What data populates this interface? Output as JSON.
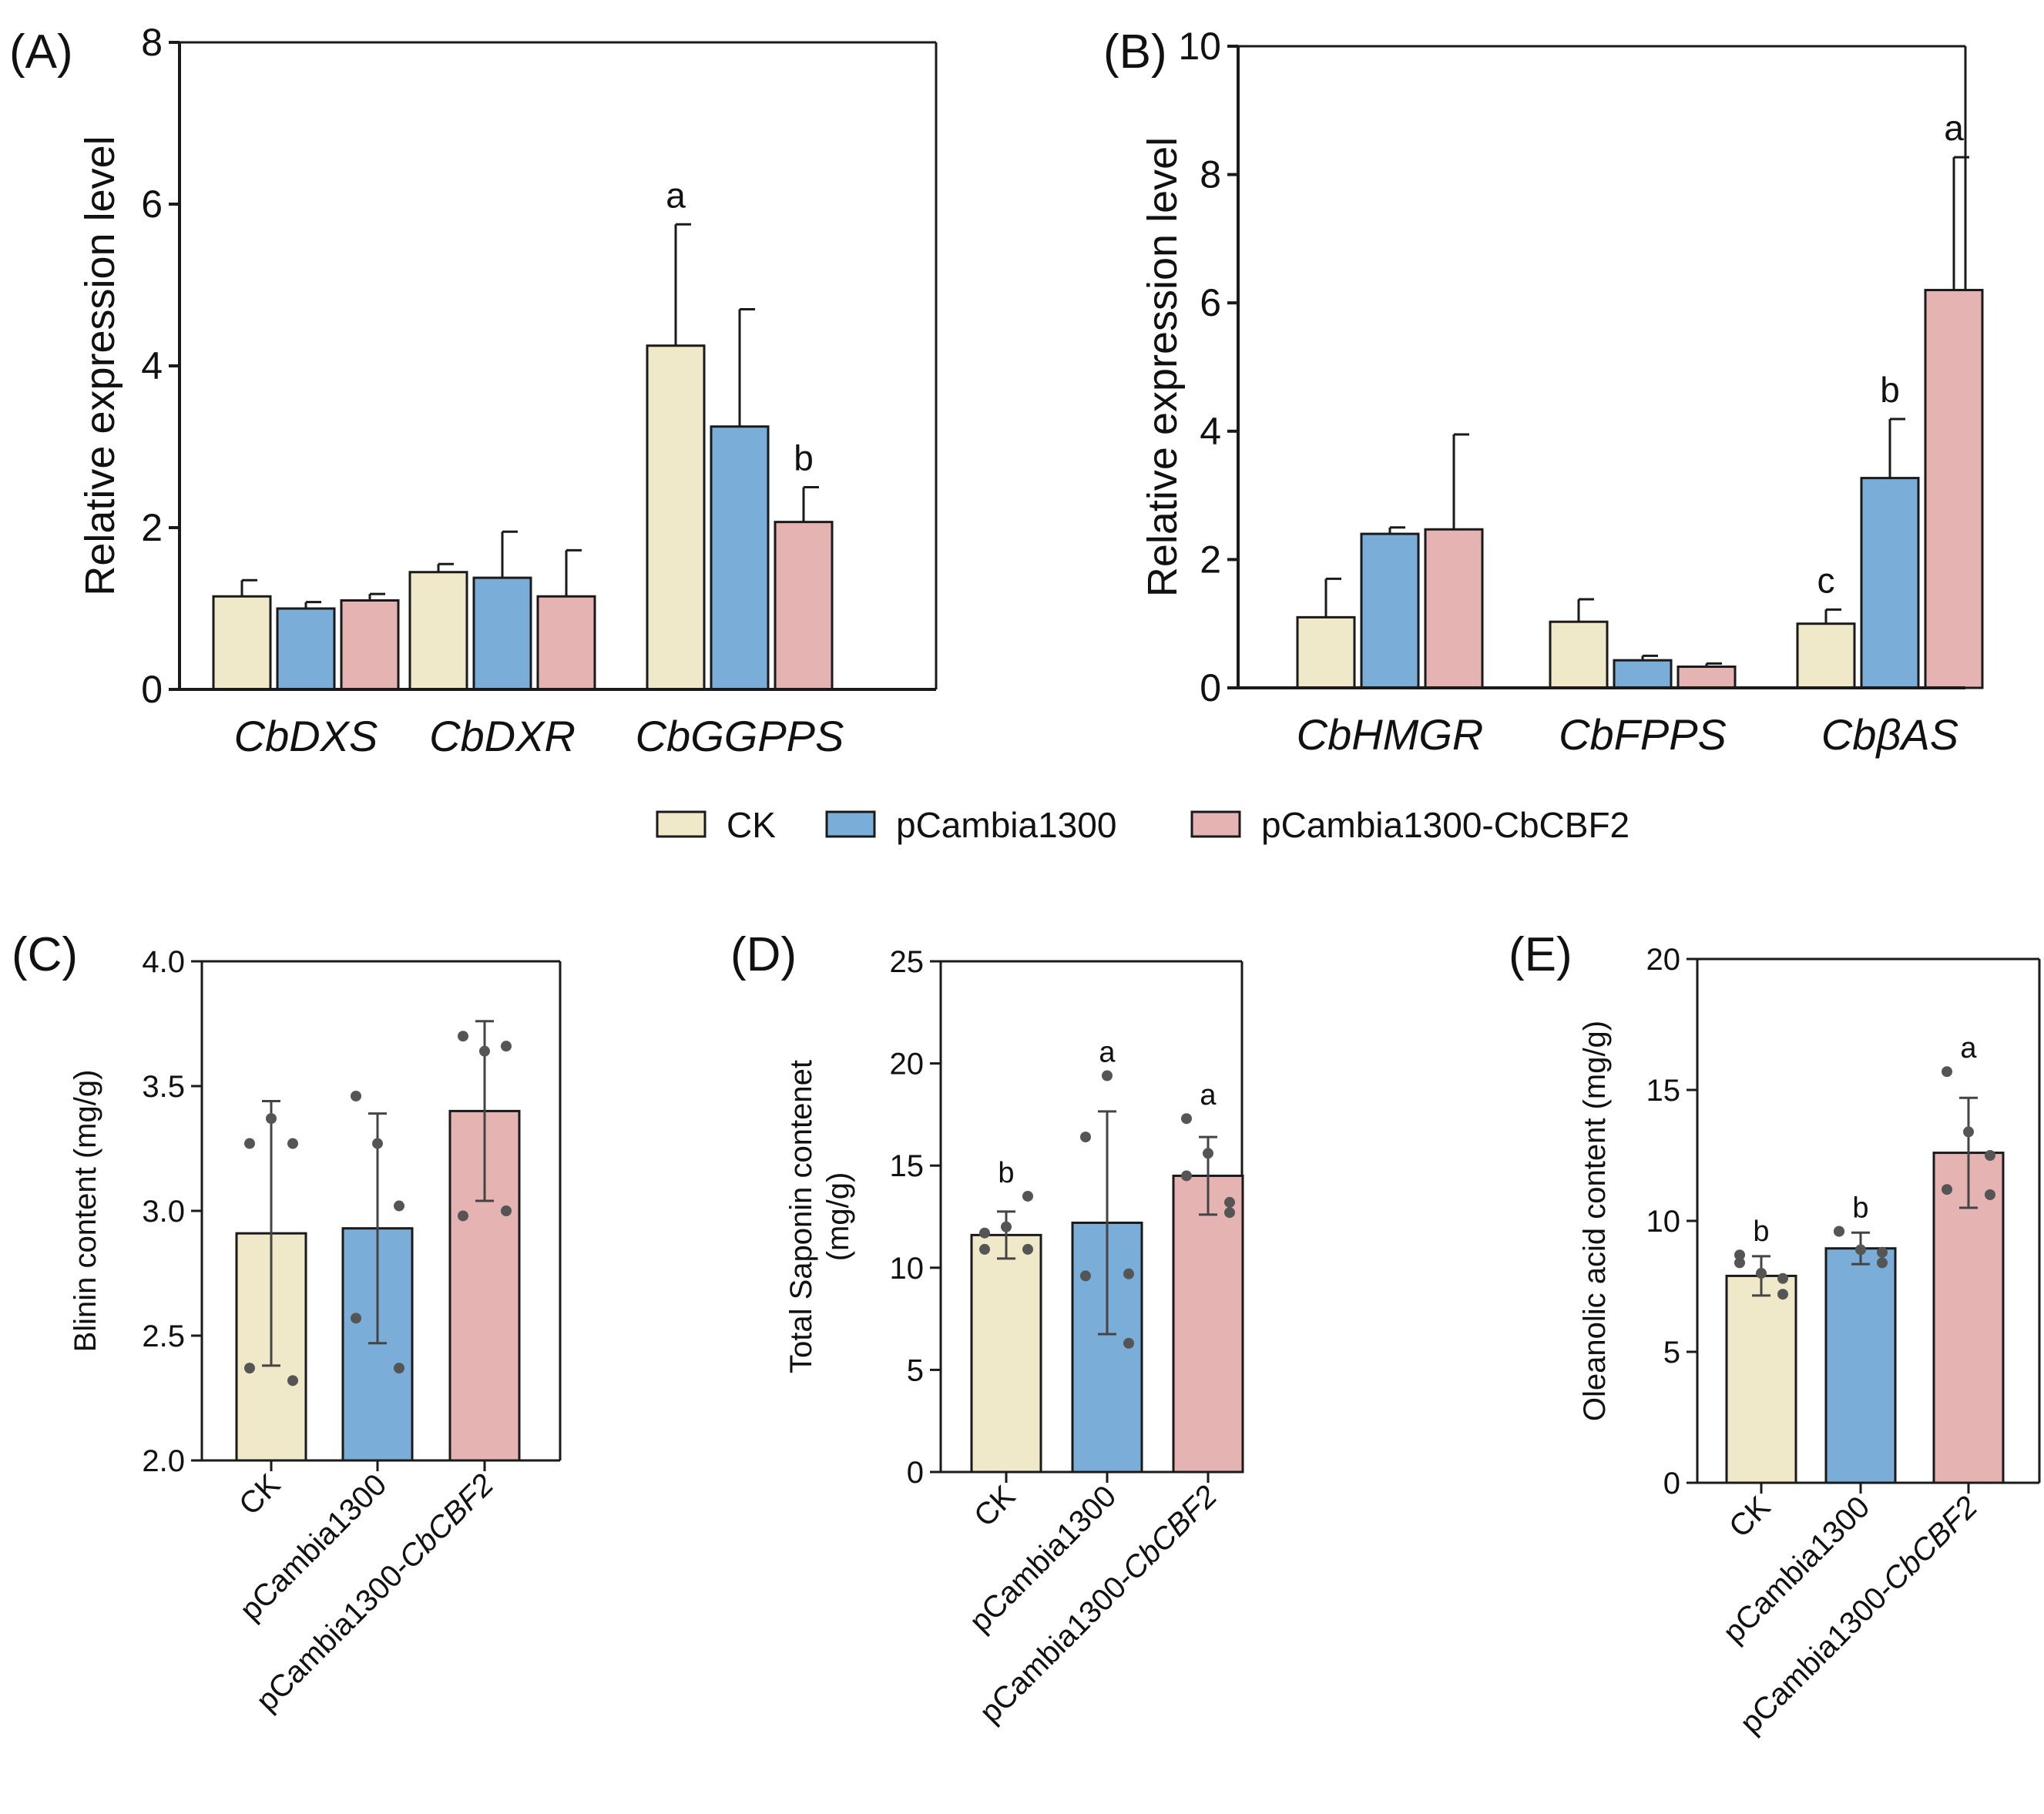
{
  "colors": {
    "ck": "#efe8c9",
    "p1300": "#7aadd8",
    "cbf2": "#e6b3b3",
    "edge": "#1a1a1a",
    "point": "#555555"
  },
  "legend": {
    "items": [
      {
        "label": "CK",
        "color": "#efe8c9"
      },
      {
        "label": "pCambia1300",
        "color": "#7aadd8"
      },
      {
        "label": "pCambia1300-CbCBF2",
        "color": "#e6b3b3"
      }
    ]
  },
  "chart_data": [
    {
      "panel": "(A)",
      "type": "bar",
      "ylabel": "Relative expression level",
      "ylim": [
        0,
        8
      ],
      "yticks": [
        0,
        2,
        4,
        6,
        8
      ],
      "categories": [
        "CbDXS",
        "CbDXR",
        "CbGGPPS"
      ],
      "series": [
        {
          "name": "CK",
          "values": [
            1.15,
            1.45,
            4.25
          ],
          "errors": [
            0.2,
            0.1,
            1.5
          ]
        },
        {
          "name": "pCambia1300",
          "values": [
            1.0,
            1.38,
            3.25
          ],
          "errors": [
            0.08,
            0.57,
            1.45
          ]
        },
        {
          "name": "pCambia1300-CbCBF2",
          "values": [
            1.1,
            1.15,
            2.07
          ],
          "errors": [
            0.08,
            0.57,
            0.43
          ]
        }
      ],
      "sig_letters": [
        {
          "category": 2,
          "series": 0,
          "text": "a"
        },
        {
          "category": 2,
          "series": 2,
          "text": "b"
        }
      ]
    },
    {
      "panel": "(B)",
      "type": "bar",
      "ylabel": "Relative expression level",
      "ylim": [
        0,
        10
      ],
      "yticks": [
        0,
        2,
        4,
        6,
        8,
        10
      ],
      "categories": [
        "CbHMGR",
        "CbFPPS",
        "CbβAS"
      ],
      "series": [
        {
          "name": "CK",
          "values": [
            1.1,
            1.03,
            1.0
          ],
          "errors": [
            0.6,
            0.35,
            0.22
          ]
        },
        {
          "name": "pCambia1300",
          "values": [
            2.4,
            0.43,
            3.27
          ],
          "errors": [
            0.1,
            0.07,
            0.92
          ]
        },
        {
          "name": "pCambia1300-CbCBF2",
          "values": [
            2.47,
            0.33,
            6.2
          ],
          "errors": [
            1.48,
            0.05,
            2.07
          ]
        }
      ],
      "sig_letters": [
        {
          "category": 2,
          "series": 0,
          "text": "c"
        },
        {
          "category": 2,
          "series": 1,
          "text": "b"
        },
        {
          "category": 2,
          "series": 2,
          "text": "a"
        }
      ]
    },
    {
      "panel": "(C)",
      "type": "bar",
      "ylabel": "Blinin content (mg/g)",
      "ylim": [
        2.0,
        4.0
      ],
      "yticks": [
        2.0,
        2.5,
        3.0,
        3.5,
        4.0
      ],
      "tick_decimals": 1,
      "categories": [
        "CK",
        "pCambia1300",
        "pCambia1300-CbCBF2"
      ],
      "values": [
        2.91,
        2.93,
        3.4
      ],
      "errors": [
        0.53,
        0.46,
        0.36
      ],
      "points": [
        [
          3.27,
          3.37,
          3.27,
          2.37,
          2.32
        ],
        [
          3.46,
          3.27,
          3.02,
          2.57,
          2.37
        ],
        [
          3.7,
          3.64,
          3.66,
          2.98,
          3.0
        ]
      ],
      "sig_letters": []
    },
    {
      "panel": "(D)",
      "type": "bar",
      "ylabel": "Total Saponin contenet",
      "ylabel2": "(mg/g)",
      "ylim": [
        0,
        25
      ],
      "yticks": [
        0,
        5,
        10,
        15,
        20,
        25
      ],
      "categories": [
        "CK",
        "pCambia1300",
        "pCambia1300-CbCBF2"
      ],
      "values": [
        11.6,
        12.2,
        14.5
      ],
      "errors": [
        1.15,
        5.45,
        1.9
      ],
      "points": [
        [
          10.9,
          12.0,
          13.5,
          11.7,
          10.9
        ],
        [
          16.4,
          19.4,
          9.7,
          9.6,
          6.3
        ],
        [
          17.3,
          15.6,
          13.2,
          14.5,
          12.7
        ]
      ],
      "sig_letters": [
        "b",
        "a",
        "a"
      ]
    },
    {
      "panel": "(E)",
      "type": "bar",
      "ylabel": "Oleanolic acid content (mg/g)",
      "ylim": [
        0,
        20
      ],
      "yticks": [
        0,
        5,
        10,
        15,
        20
      ],
      "categories": [
        "CK",
        "pCambia1300",
        "pCambia1300-CbCBF2"
      ],
      "values": [
        7.9,
        8.95,
        12.6
      ],
      "errors": [
        0.75,
        0.6,
        2.1
      ],
      "points": [
        [
          8.7,
          8.0,
          7.2,
          8.4,
          7.8
        ],
        [
          9.6,
          8.9,
          8.4,
          9.6,
          8.8
        ],
        [
          15.7,
          13.4,
          11.0,
          11.2,
          12.5
        ]
      ],
      "sig_letters": [
        "b",
        "b",
        "a"
      ]
    }
  ]
}
